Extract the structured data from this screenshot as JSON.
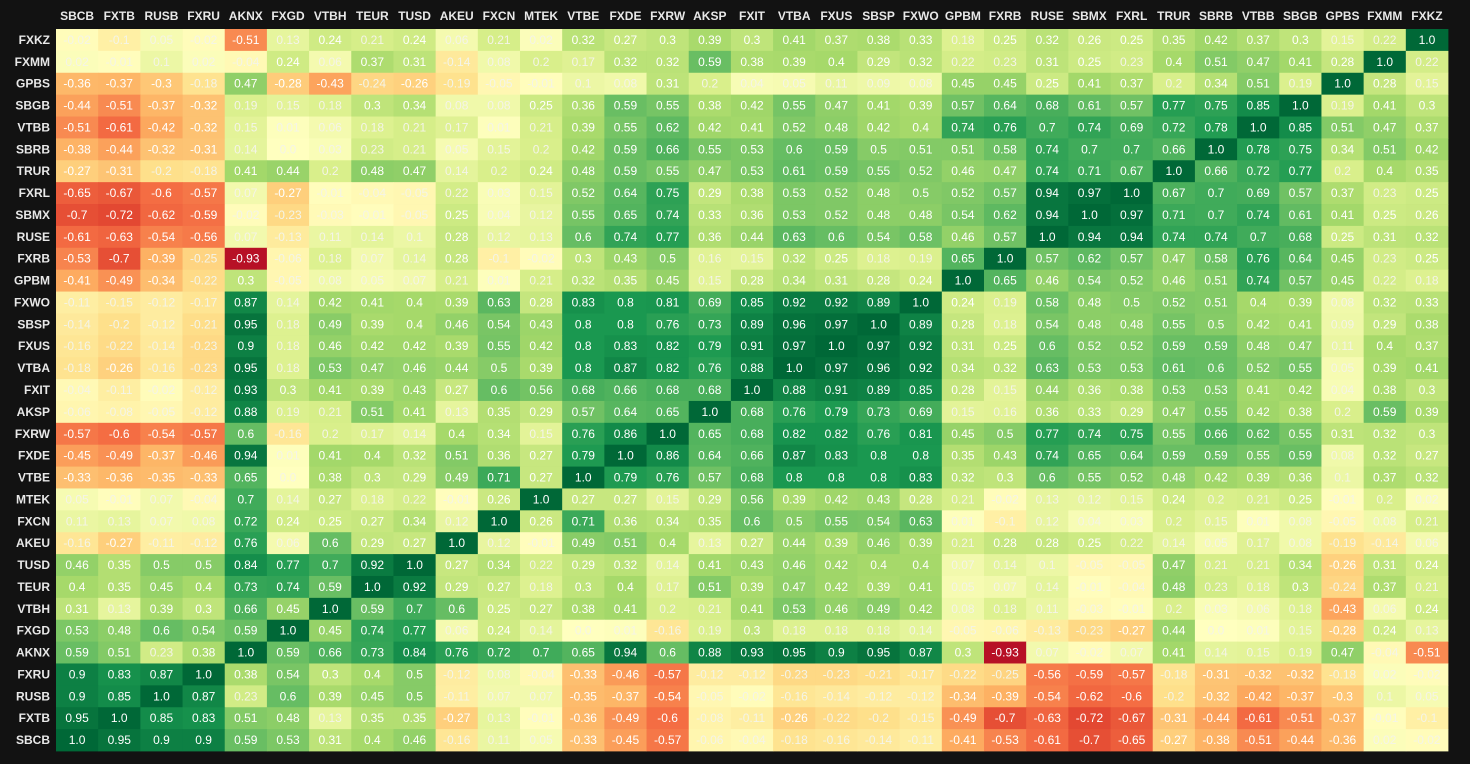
{
  "chart_data": {
    "type": "heatmap",
    "title": "",
    "xlabel": "",
    "ylabel": "",
    "value_range": [
      -1,
      1
    ],
    "colormap": "RdYlGn",
    "background": "#121212",
    "columns": [
      "SBCB",
      "FXTB",
      "RUSB",
      "FXRU",
      "AKNX",
      "FXGD",
      "VTBH",
      "TEUR",
      "TUSD",
      "AKEU",
      "FXCN",
      "MTEK",
      "VTBE",
      "FXDE",
      "FXRW",
      "AKSP",
      "FXIT",
      "VTBA",
      "FXUS",
      "SBSP",
      "FXWO",
      "GPBM",
      "FXRB",
      "RUSE",
      "SBMX",
      "FXRL",
      "TRUR",
      "SBRB",
      "VTBB",
      "SBGB",
      "GPBS",
      "FXMM",
      "FXKZ"
    ],
    "rows": [
      "FXKZ",
      "FXMM",
      "GPBS",
      "SBGB",
      "VTBB",
      "SBRB",
      "TRUR",
      "FXRL",
      "SBMX",
      "RUSE",
      "FXRB",
      "GPBM",
      "FXWO",
      "SBSP",
      "FXUS",
      "VTBA",
      "FXIT",
      "AKSP",
      "FXRW",
      "FXDE",
      "VTBE",
      "MTEK",
      "FXCN",
      "AKEU",
      "TUSD",
      "TEUR",
      "VTBH",
      "FXGD",
      "AKNX",
      "FXRU",
      "RUSB",
      "FXTB",
      "SBCB"
    ],
    "values": [
      [
        -0.02,
        -0.1,
        0.05,
        -0.02,
        -0.51,
        0.13,
        0.24,
        0.21,
        0.24,
        0.06,
        0.21,
        0.02,
        0.32,
        0.27,
        0.3,
        0.39,
        0.3,
        0.41,
        0.37,
        0.38,
        0.33,
        0.18,
        0.25,
        0.32,
        0.26,
        0.25,
        0.35,
        0.42,
        0.37,
        0.3,
        0.15,
        0.22,
        1.0
      ],
      [
        0.02,
        -0.01,
        0.1,
        0.02,
        -0.04,
        0.24,
        0.06,
        0.37,
        0.31,
        -0.14,
        0.08,
        0.2,
        0.17,
        0.32,
        0.32,
        0.59,
        0.38,
        0.39,
        0.4,
        0.29,
        0.32,
        0.22,
        0.23,
        0.31,
        0.25,
        0.23,
        0.4,
        0.51,
        0.47,
        0.41,
        0.28,
        1.0,
        0.22
      ],
      [
        -0.36,
        -0.37,
        -0.3,
        -0.18,
        0.47,
        -0.28,
        -0.43,
        -0.24,
        -0.26,
        -0.19,
        -0.05,
        -0.01,
        0.1,
        0.08,
        0.31,
        0.2,
        0.04,
        0.05,
        0.11,
        0.09,
        0.08,
        0.45,
        0.45,
        0.25,
        0.41,
        0.37,
        0.2,
        0.34,
        0.51,
        0.19,
        1.0,
        0.28,
        0.15
      ],
      [
        -0.44,
        -0.51,
        -0.37,
        -0.32,
        0.19,
        0.15,
        0.18,
        0.3,
        0.34,
        0.08,
        0.08,
        0.25,
        0.36,
        0.59,
        0.55,
        0.38,
        0.42,
        0.55,
        0.47,
        0.41,
        0.39,
        0.57,
        0.64,
        0.68,
        0.61,
        0.57,
        0.77,
        0.75,
        0.85,
        1.0,
        0.19,
        0.41,
        0.3
      ],
      [
        -0.51,
        -0.61,
        -0.42,
        -0.32,
        0.15,
        0.01,
        0.06,
        0.18,
        0.21,
        0.17,
        0.01,
        0.21,
        0.39,
        0.55,
        0.62,
        0.42,
        0.41,
        0.52,
        0.48,
        0.42,
        0.4,
        0.74,
        0.76,
        0.7,
        0.74,
        0.69,
        0.72,
        0.78,
        1.0,
        0.85,
        0.51,
        0.47,
        0.37
      ],
      [
        -0.38,
        -0.44,
        -0.32,
        -0.31,
        0.14,
        0.0,
        0.03,
        0.23,
        0.21,
        0.05,
        0.15,
        0.2,
        0.42,
        0.59,
        0.66,
        0.55,
        0.53,
        0.6,
        0.59,
        0.5,
        0.51,
        0.51,
        0.58,
        0.74,
        0.7,
        0.7,
        0.66,
        1.0,
        0.78,
        0.75,
        0.34,
        0.51,
        0.42
      ],
      [
        -0.27,
        -0.31,
        -0.2,
        -0.18,
        0.41,
        0.44,
        0.2,
        0.48,
        0.47,
        0.14,
        0.2,
        0.24,
        0.48,
        0.59,
        0.55,
        0.47,
        0.53,
        0.61,
        0.59,
        0.55,
        0.52,
        0.46,
        0.47,
        0.74,
        0.71,
        0.67,
        1.0,
        0.66,
        0.72,
        0.77,
        0.2,
        0.4,
        0.35
      ],
      [
        -0.65,
        -0.67,
        -0.6,
        -0.57,
        0.07,
        -0.27,
        -0.01,
        -0.04,
        -0.05,
        0.22,
        0.03,
        0.15,
        0.52,
        0.64,
        0.75,
        0.29,
        0.38,
        0.53,
        0.52,
        0.48,
        0.5,
        0.52,
        0.57,
        0.94,
        0.97,
        1.0,
        0.67,
        0.7,
        0.69,
        0.57,
        0.37,
        0.23,
        0.25
      ],
      [
        -0.7,
        -0.72,
        -0.62,
        -0.59,
        -0.02,
        -0.23,
        -0.03,
        -0.01,
        -0.05,
        0.25,
        0.04,
        0.12,
        0.55,
        0.65,
        0.74,
        0.33,
        0.36,
        0.53,
        0.52,
        0.48,
        0.48,
        0.54,
        0.62,
        0.94,
        1.0,
        0.97,
        0.71,
        0.7,
        0.74,
        0.61,
        0.41,
        0.25,
        0.26
      ],
      [
        -0.61,
        -0.63,
        -0.54,
        -0.56,
        0.07,
        -0.13,
        0.11,
        0.14,
        0.1,
        0.28,
        0.12,
        0.13,
        0.6,
        0.74,
        0.77,
        0.36,
        0.44,
        0.63,
        0.6,
        0.54,
        0.58,
        0.46,
        0.57,
        1.0,
        0.94,
        0.94,
        0.74,
        0.74,
        0.7,
        0.68,
        0.25,
        0.31,
        0.32
      ],
      [
        -0.53,
        -0.7,
        -0.39,
        -0.25,
        -0.93,
        -0.06,
        0.18,
        0.07,
        0.14,
        0.28,
        -0.1,
        -0.02,
        0.3,
        0.43,
        0.5,
        0.16,
        0.15,
        0.32,
        0.25,
        0.18,
        0.19,
        0.65,
        1.0,
        0.57,
        0.62,
        0.57,
        0.47,
        0.58,
        0.76,
        0.64,
        0.45,
        0.23,
        0.25
      ],
      [
        -0.41,
        -0.49,
        -0.34,
        -0.22,
        0.3,
        -0.05,
        0.08,
        0.05,
        0.07,
        0.21,
        0.01,
        0.21,
        0.32,
        0.35,
        0.45,
        0.15,
        0.28,
        0.34,
        0.31,
        0.28,
        0.24,
        1.0,
        0.65,
        0.46,
        0.54,
        0.52,
        0.46,
        0.51,
        0.74,
        0.57,
        0.45,
        0.22,
        0.18
      ],
      [
        -0.11,
        -0.15,
        -0.12,
        -0.17,
        0.87,
        0.14,
        0.42,
        0.41,
        0.4,
        0.39,
        0.63,
        0.28,
        0.83,
        0.8,
        0.81,
        0.69,
        0.85,
        0.92,
        0.92,
        0.89,
        1.0,
        0.24,
        0.19,
        0.58,
        0.48,
        0.5,
        0.52,
        0.51,
        0.4,
        0.39,
        0.08,
        0.32,
        0.33
      ],
      [
        -0.14,
        -0.2,
        -0.12,
        -0.21,
        0.95,
        0.18,
        0.49,
        0.39,
        0.4,
        0.46,
        0.54,
        0.43,
        0.8,
        0.8,
        0.76,
        0.73,
        0.89,
        0.96,
        0.97,
        1.0,
        0.89,
        0.28,
        0.18,
        0.54,
        0.48,
        0.48,
        0.55,
        0.5,
        0.42,
        0.41,
        0.09,
        0.29,
        0.38
      ],
      [
        -0.16,
        -0.22,
        -0.14,
        -0.23,
        0.9,
        0.18,
        0.46,
        0.42,
        0.42,
        0.39,
        0.55,
        0.42,
        0.8,
        0.83,
        0.82,
        0.79,
        0.91,
        0.97,
        1.0,
        0.97,
        0.92,
        0.31,
        0.25,
        0.6,
        0.52,
        0.52,
        0.59,
        0.59,
        0.48,
        0.47,
        0.11,
        0.4,
        0.37
      ],
      [
        -0.18,
        -0.26,
        -0.16,
        -0.23,
        0.95,
        0.18,
        0.53,
        0.47,
        0.46,
        0.44,
        0.5,
        0.39,
        0.8,
        0.87,
        0.82,
        0.76,
        0.88,
        1.0,
        0.97,
        0.96,
        0.92,
        0.34,
        0.32,
        0.63,
        0.53,
        0.53,
        0.61,
        0.6,
        0.52,
        0.55,
        0.05,
        0.39,
        0.41
      ],
      [
        -0.04,
        -0.11,
        -0.02,
        -0.12,
        0.93,
        0.3,
        0.41,
        0.39,
        0.43,
        0.27,
        0.6,
        0.56,
        0.68,
        0.66,
        0.68,
        0.68,
        1.0,
        0.88,
        0.91,
        0.89,
        0.85,
        0.28,
        0.15,
        0.44,
        0.36,
        0.38,
        0.53,
        0.53,
        0.41,
        0.42,
        0.04,
        0.38,
        0.3
      ],
      [
        -0.06,
        -0.08,
        -0.05,
        -0.12,
        0.88,
        0.19,
        0.21,
        0.51,
        0.41,
        0.13,
        0.35,
        0.29,
        0.57,
        0.64,
        0.65,
        1.0,
        0.68,
        0.76,
        0.79,
        0.73,
        0.69,
        0.15,
        0.16,
        0.36,
        0.33,
        0.29,
        0.47,
        0.55,
        0.42,
        0.38,
        0.2,
        0.59,
        0.39
      ],
      [
        -0.57,
        -0.6,
        -0.54,
        -0.57,
        0.6,
        -0.16,
        0.2,
        0.17,
        0.14,
        0.4,
        0.34,
        0.15,
        0.76,
        0.86,
        1.0,
        0.65,
        0.68,
        0.82,
        0.82,
        0.76,
        0.81,
        0.45,
        0.5,
        0.77,
        0.74,
        0.75,
        0.55,
        0.66,
        0.62,
        0.55,
        0.31,
        0.32,
        0.3
      ],
      [
        -0.45,
        -0.49,
        -0.37,
        -0.46,
        0.94,
        0.01,
        0.41,
        0.4,
        0.32,
        0.51,
        0.36,
        0.27,
        0.79,
        1.0,
        0.86,
        0.64,
        0.66,
        0.87,
        0.83,
        0.8,
        0.8,
        0.35,
        0.43,
        0.74,
        0.65,
        0.64,
        0.59,
        0.59,
        0.55,
        0.59,
        0.08,
        0.32,
        0.27
      ],
      [
        -0.33,
        -0.36,
        -0.35,
        -0.33,
        0.65,
        0.0,
        0.38,
        0.3,
        0.29,
        0.49,
        0.71,
        0.27,
        1.0,
        0.79,
        0.76,
        0.57,
        0.68,
        0.8,
        0.8,
        0.8,
        0.83,
        0.32,
        0.3,
        0.6,
        0.55,
        0.52,
        0.48,
        0.42,
        0.39,
        0.36,
        0.1,
        0.37,
        0.32
      ],
      [
        0.05,
        -0.01,
        0.07,
        -0.04,
        0.7,
        0.14,
        0.27,
        0.18,
        0.22,
        -0.01,
        0.26,
        1.0,
        0.27,
        0.27,
        0.15,
        0.29,
        0.56,
        0.39,
        0.42,
        0.43,
        0.28,
        0.21,
        -0.02,
        0.13,
        0.12,
        0.15,
        0.24,
        0.2,
        0.21,
        0.25,
        -0.01,
        0.2,
        0.02
      ],
      [
        0.11,
        0.13,
        0.07,
        0.08,
        0.72,
        0.24,
        0.25,
        0.27,
        0.34,
        0.12,
        1.0,
        0.26,
        0.71,
        0.36,
        0.34,
        0.35,
        0.6,
        0.5,
        0.55,
        0.54,
        0.63,
        0.01,
        -0.1,
        0.12,
        0.04,
        0.03,
        0.2,
        0.15,
        0.01,
        0.08,
        -0.05,
        0.08,
        0.21
      ],
      [
        -0.16,
        -0.27,
        -0.11,
        -0.12,
        0.76,
        0.06,
        0.6,
        0.29,
        0.27,
        1.0,
        0.12,
        -0.01,
        0.49,
        0.51,
        0.4,
        0.13,
        0.27,
        0.44,
        0.39,
        0.46,
        0.39,
        0.21,
        0.28,
        0.28,
        0.25,
        0.22,
        0.14,
        0.05,
        0.17,
        0.08,
        -0.19,
        -0.14,
        0.06
      ],
      [
        0.46,
        0.35,
        0.5,
        0.5,
        0.84,
        0.77,
        0.7,
        0.92,
        1.0,
        0.27,
        0.34,
        0.22,
        0.29,
        0.32,
        0.14,
        0.41,
        0.43,
        0.46,
        0.42,
        0.4,
        0.4,
        0.07,
        0.14,
        0.1,
        -0.05,
        -0.05,
        0.47,
        0.21,
        0.21,
        0.34,
        -0.26,
        0.31,
        0.24
      ],
      [
        0.4,
        0.35,
        0.45,
        0.4,
        0.73,
        0.74,
        0.59,
        1.0,
        0.92,
        0.29,
        0.27,
        0.18,
        0.3,
        0.4,
        0.17,
        0.51,
        0.39,
        0.47,
        0.42,
        0.39,
        0.41,
        0.05,
        0.07,
        0.14,
        -0.01,
        -0.04,
        0.48,
        0.23,
        0.18,
        0.3,
        -0.24,
        0.37,
        0.21
      ],
      [
        0.31,
        0.13,
        0.39,
        0.3,
        0.66,
        0.45,
        1.0,
        0.59,
        0.7,
        0.6,
        0.25,
        0.27,
        0.38,
        0.41,
        0.2,
        0.21,
        0.41,
        0.53,
        0.46,
        0.49,
        0.42,
        0.08,
        0.18,
        0.11,
        -0.03,
        -0.01,
        0.2,
        0.03,
        0.06,
        0.18,
        -0.43,
        0.06,
        0.24
      ],
      [
        0.53,
        0.48,
        0.6,
        0.54,
        0.59,
        1.0,
        0.45,
        0.74,
        0.77,
        0.06,
        0.24,
        0.14,
        0.0,
        0.01,
        -0.16,
        0.19,
        0.3,
        0.18,
        0.18,
        0.18,
        0.14,
        -0.05,
        -0.06,
        -0.13,
        -0.23,
        -0.27,
        0.44,
        0.0,
        0.01,
        0.15,
        -0.28,
        0.24,
        0.13
      ],
      [
        0.59,
        0.51,
        0.23,
        0.38,
        1.0,
        0.59,
        0.66,
        0.73,
        0.84,
        0.76,
        0.72,
        0.7,
        0.65,
        0.94,
        0.6,
        0.88,
        0.93,
        0.95,
        0.9,
        0.95,
        0.87,
        0.3,
        -0.93,
        0.07,
        -0.02,
        0.07,
        0.41,
        0.14,
        0.15,
        0.19,
        0.47,
        -0.04,
        -0.51
      ],
      [
        0.9,
        0.83,
        0.87,
        1.0,
        0.38,
        0.54,
        0.3,
        0.4,
        0.5,
        -0.12,
        0.08,
        -0.04,
        -0.33,
        -0.46,
        -0.57,
        -0.12,
        -0.12,
        -0.23,
        -0.23,
        -0.21,
        -0.17,
        -0.22,
        -0.25,
        -0.56,
        -0.59,
        -0.57,
        -0.18,
        -0.31,
        -0.32,
        -0.32,
        -0.18,
        0.02,
        -0.02
      ],
      [
        0.9,
        0.85,
        1.0,
        0.87,
        0.23,
        0.6,
        0.39,
        0.45,
        0.5,
        -0.11,
        0.07,
        0.07,
        -0.35,
        -0.37,
        -0.54,
        -0.05,
        -0.02,
        -0.16,
        -0.14,
        -0.12,
        -0.12,
        -0.34,
        -0.39,
        -0.54,
        -0.62,
        -0.6,
        -0.2,
        -0.32,
        -0.42,
        -0.37,
        -0.3,
        0.1,
        0.05
      ],
      [
        0.95,
        1.0,
        0.85,
        0.83,
        0.51,
        0.48,
        0.13,
        0.35,
        0.35,
        -0.27,
        0.13,
        -0.01,
        -0.36,
        -0.49,
        -0.6,
        -0.08,
        -0.11,
        -0.26,
        -0.22,
        -0.2,
        -0.15,
        -0.49,
        -0.7,
        -0.63,
        -0.72,
        -0.67,
        -0.31,
        -0.44,
        -0.61,
        -0.51,
        -0.37,
        -0.01,
        -0.1
      ],
      [
        1.0,
        0.95,
        0.9,
        0.9,
        0.59,
        0.53,
        0.31,
        0.4,
        0.46,
        -0.16,
        0.11,
        0.05,
        -0.33,
        -0.45,
        -0.57,
        -0.06,
        -0.04,
        -0.18,
        -0.16,
        -0.14,
        -0.11,
        -0.41,
        -0.53,
        -0.61,
        -0.7,
        -0.65,
        -0.27,
        -0.38,
        -0.51,
        -0.44,
        -0.36,
        0.02,
        -0.02
      ]
    ]
  }
}
